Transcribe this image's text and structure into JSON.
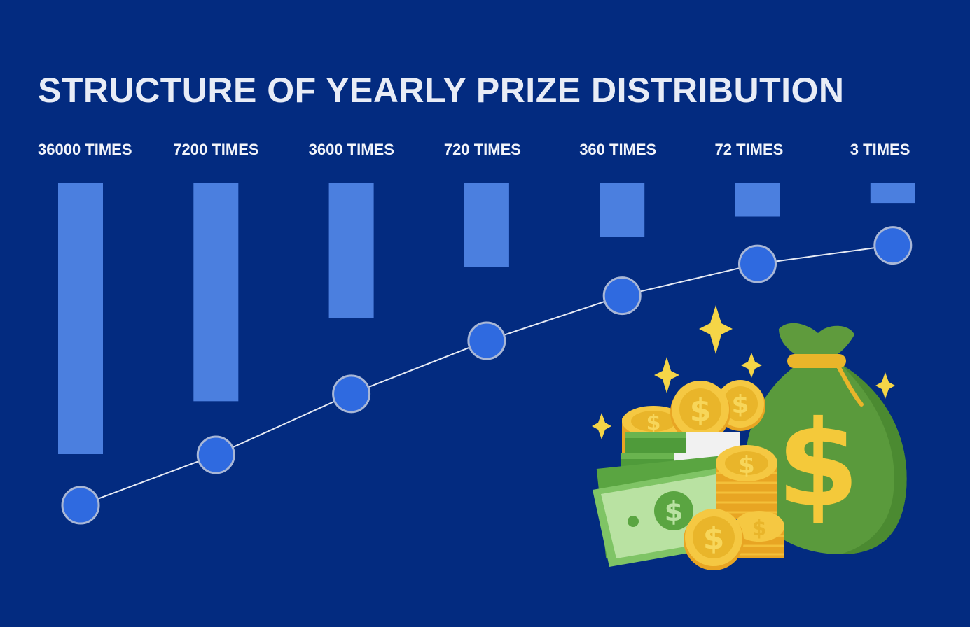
{
  "title": "STRUCTURE OF YEARLY PRIZE DISTRIBUTION",
  "colors": {
    "background": "#032b80",
    "bar": "#4b7fdf",
    "point_fill": "#2f6ae0",
    "point_stroke": "#a9b7d6",
    "line": "#e6eaf4",
    "text": "#f2f4fa"
  },
  "illustration": "money-bag-coins-cash",
  "chart_data": {
    "type": "bar",
    "categories": [
      "36000 TIMES",
      "7200 TIMES",
      "3600 TIMES",
      "720 TIMES",
      "360 TIMES",
      "72 TIMES",
      "3 TIMES"
    ],
    "series": [
      {
        "type": "bar",
        "values": [
          100,
          80.5,
          50,
          31,
          20,
          12.5,
          7.5
        ]
      },
      {
        "type": "line",
        "values": [
          0,
          19,
          42,
          62,
          79,
          91,
          98
        ]
      }
    ],
    "ylim": [
      0,
      100
    ],
    "grid": false,
    "legend": "none"
  }
}
